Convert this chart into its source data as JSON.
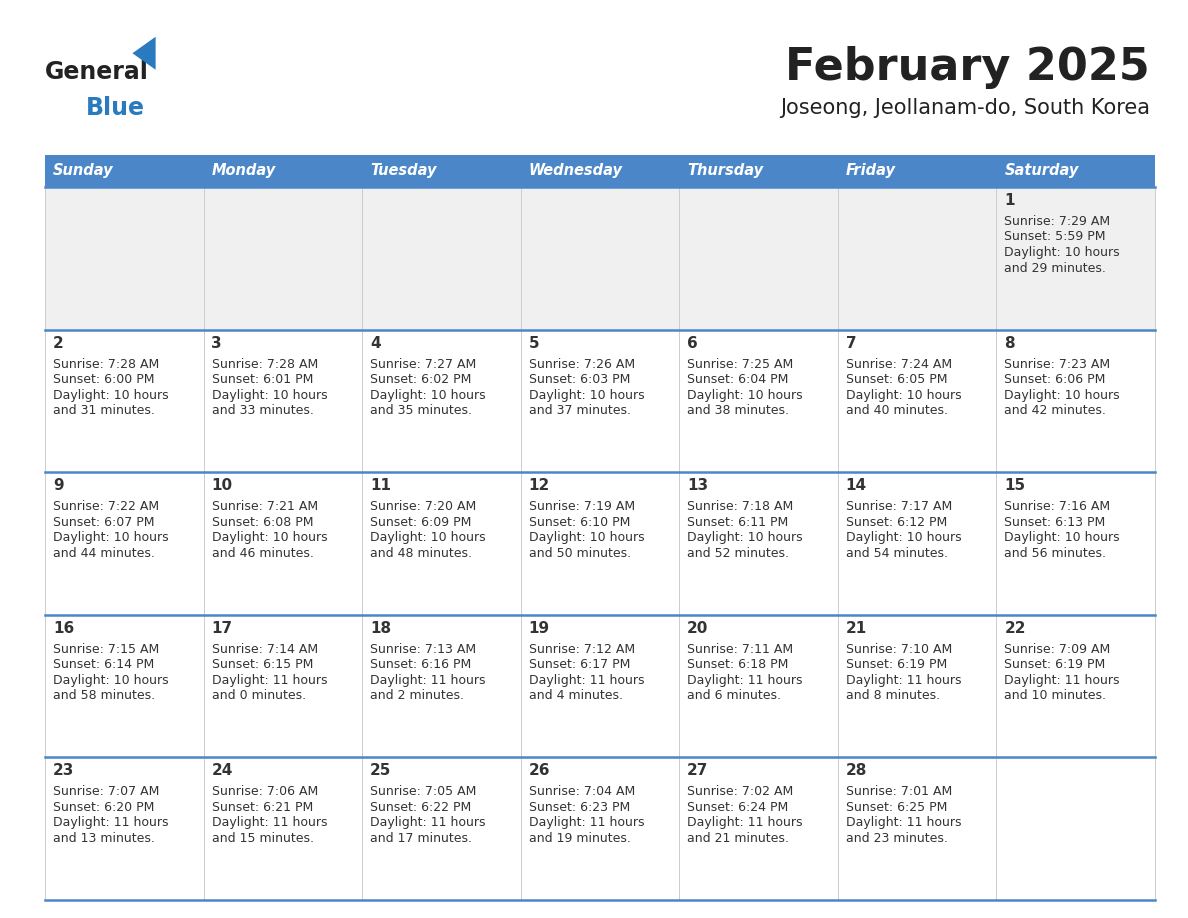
{
  "title": "February 2025",
  "subtitle": "Joseong, Jeollanam-do, South Korea",
  "days_of_week": [
    "Sunday",
    "Monday",
    "Tuesday",
    "Wednesday",
    "Thursday",
    "Friday",
    "Saturday"
  ],
  "header_bg": "#4a86c8",
  "header_text": "#ffffff",
  "row1_bg": "#f0f0f0",
  "row_bg": "#ffffff",
  "separator_color": "#4a86c8",
  "text_color": "#333333",
  "title_color": "#222222",
  "logo_general_color": "#222222",
  "logo_blue_color": "#2a7abf",
  "calendar_data": [
    [
      null,
      null,
      null,
      null,
      null,
      null,
      {
        "day": "1",
        "sunrise": "7:29 AM",
        "sunset": "5:59 PM",
        "daylight_h": "10 hours",
        "daylight_m": "and 29 minutes."
      }
    ],
    [
      {
        "day": "2",
        "sunrise": "7:28 AM",
        "sunset": "6:00 PM",
        "daylight_h": "10 hours",
        "daylight_m": "and 31 minutes."
      },
      {
        "day": "3",
        "sunrise": "7:28 AM",
        "sunset": "6:01 PM",
        "daylight_h": "10 hours",
        "daylight_m": "and 33 minutes."
      },
      {
        "day": "4",
        "sunrise": "7:27 AM",
        "sunset": "6:02 PM",
        "daylight_h": "10 hours",
        "daylight_m": "and 35 minutes."
      },
      {
        "day": "5",
        "sunrise": "7:26 AM",
        "sunset": "6:03 PM",
        "daylight_h": "10 hours",
        "daylight_m": "and 37 minutes."
      },
      {
        "day": "6",
        "sunrise": "7:25 AM",
        "sunset": "6:04 PM",
        "daylight_h": "10 hours",
        "daylight_m": "and 38 minutes."
      },
      {
        "day": "7",
        "sunrise": "7:24 AM",
        "sunset": "6:05 PM",
        "daylight_h": "10 hours",
        "daylight_m": "and 40 minutes."
      },
      {
        "day": "8",
        "sunrise": "7:23 AM",
        "sunset": "6:06 PM",
        "daylight_h": "10 hours",
        "daylight_m": "and 42 minutes."
      }
    ],
    [
      {
        "day": "9",
        "sunrise": "7:22 AM",
        "sunset": "6:07 PM",
        "daylight_h": "10 hours",
        "daylight_m": "and 44 minutes."
      },
      {
        "day": "10",
        "sunrise": "7:21 AM",
        "sunset": "6:08 PM",
        "daylight_h": "10 hours",
        "daylight_m": "and 46 minutes."
      },
      {
        "day": "11",
        "sunrise": "7:20 AM",
        "sunset": "6:09 PM",
        "daylight_h": "10 hours",
        "daylight_m": "and 48 minutes."
      },
      {
        "day": "12",
        "sunrise": "7:19 AM",
        "sunset": "6:10 PM",
        "daylight_h": "10 hours",
        "daylight_m": "and 50 minutes."
      },
      {
        "day": "13",
        "sunrise": "7:18 AM",
        "sunset": "6:11 PM",
        "daylight_h": "10 hours",
        "daylight_m": "and 52 minutes."
      },
      {
        "day": "14",
        "sunrise": "7:17 AM",
        "sunset": "6:12 PM",
        "daylight_h": "10 hours",
        "daylight_m": "and 54 minutes."
      },
      {
        "day": "15",
        "sunrise": "7:16 AM",
        "sunset": "6:13 PM",
        "daylight_h": "10 hours",
        "daylight_m": "and 56 minutes."
      }
    ],
    [
      {
        "day": "16",
        "sunrise": "7:15 AM",
        "sunset": "6:14 PM",
        "daylight_h": "10 hours",
        "daylight_m": "and 58 minutes."
      },
      {
        "day": "17",
        "sunrise": "7:14 AM",
        "sunset": "6:15 PM",
        "daylight_h": "11 hours",
        "daylight_m": "and 0 minutes."
      },
      {
        "day": "18",
        "sunrise": "7:13 AM",
        "sunset": "6:16 PM",
        "daylight_h": "11 hours",
        "daylight_m": "and 2 minutes."
      },
      {
        "day": "19",
        "sunrise": "7:12 AM",
        "sunset": "6:17 PM",
        "daylight_h": "11 hours",
        "daylight_m": "and 4 minutes."
      },
      {
        "day": "20",
        "sunrise": "7:11 AM",
        "sunset": "6:18 PM",
        "daylight_h": "11 hours",
        "daylight_m": "and 6 minutes."
      },
      {
        "day": "21",
        "sunrise": "7:10 AM",
        "sunset": "6:19 PM",
        "daylight_h": "11 hours",
        "daylight_m": "and 8 minutes."
      },
      {
        "day": "22",
        "sunrise": "7:09 AM",
        "sunset": "6:19 PM",
        "daylight_h": "11 hours",
        "daylight_m": "and 10 minutes."
      }
    ],
    [
      {
        "day": "23",
        "sunrise": "7:07 AM",
        "sunset": "6:20 PM",
        "daylight_h": "11 hours",
        "daylight_m": "and 13 minutes."
      },
      {
        "day": "24",
        "sunrise": "7:06 AM",
        "sunset": "6:21 PM",
        "daylight_h": "11 hours",
        "daylight_m": "and 15 minutes."
      },
      {
        "day": "25",
        "sunrise": "7:05 AM",
        "sunset": "6:22 PM",
        "daylight_h": "11 hours",
        "daylight_m": "and 17 minutes."
      },
      {
        "day": "26",
        "sunrise": "7:04 AM",
        "sunset": "6:23 PM",
        "daylight_h": "11 hours",
        "daylight_m": "and 19 minutes."
      },
      {
        "day": "27",
        "sunrise": "7:02 AM",
        "sunset": "6:24 PM",
        "daylight_h": "11 hours",
        "daylight_m": "and 21 minutes."
      },
      {
        "day": "28",
        "sunrise": "7:01 AM",
        "sunset": "6:25 PM",
        "daylight_h": "11 hours",
        "daylight_m": "and 23 minutes."
      },
      null
    ]
  ]
}
